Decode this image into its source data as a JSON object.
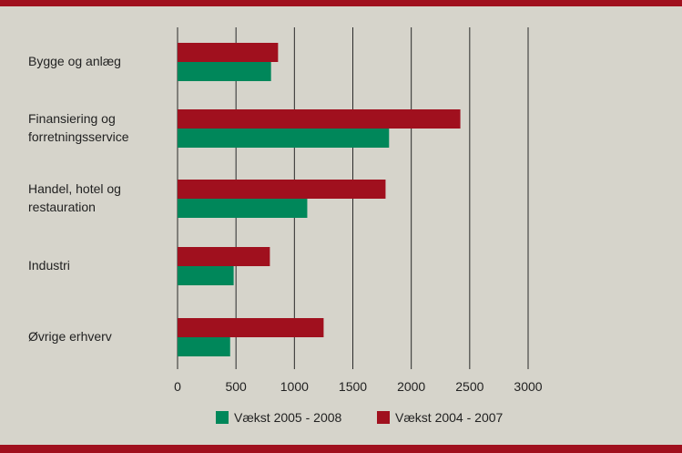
{
  "chart_data": {
    "type": "bar",
    "orientation": "horizontal",
    "categories": [
      [
        "Bygge og anlæg"
      ],
      [
        "Finansiering og",
        "forretningsservice"
      ],
      [
        "Handel, hotel og",
        "restauration"
      ],
      [
        "Industri"
      ],
      [
        "Øvrige erhverv"
      ]
    ],
    "series": [
      {
        "name": "Vækst 2004 - 2007",
        "color": "#a0101e",
        "values": [
          860,
          2420,
          1780,
          790,
          1250
        ]
      },
      {
        "name": "Vækst 2005 - 2008",
        "color": "#00875a",
        "values": [
          800,
          1810,
          1110,
          480,
          450
        ]
      }
    ],
    "legend_order": [
      "Vækst 2005 - 2008",
      "Vækst 2004 - 2007"
    ],
    "xlim": [
      0,
      3000
    ],
    "xticks": [
      0,
      500,
      1000,
      1500,
      2000,
      2500,
      3000
    ],
    "title": "",
    "xlabel": "",
    "ylabel": "",
    "grid": "vertical",
    "legend_position": "bottom-center"
  }
}
